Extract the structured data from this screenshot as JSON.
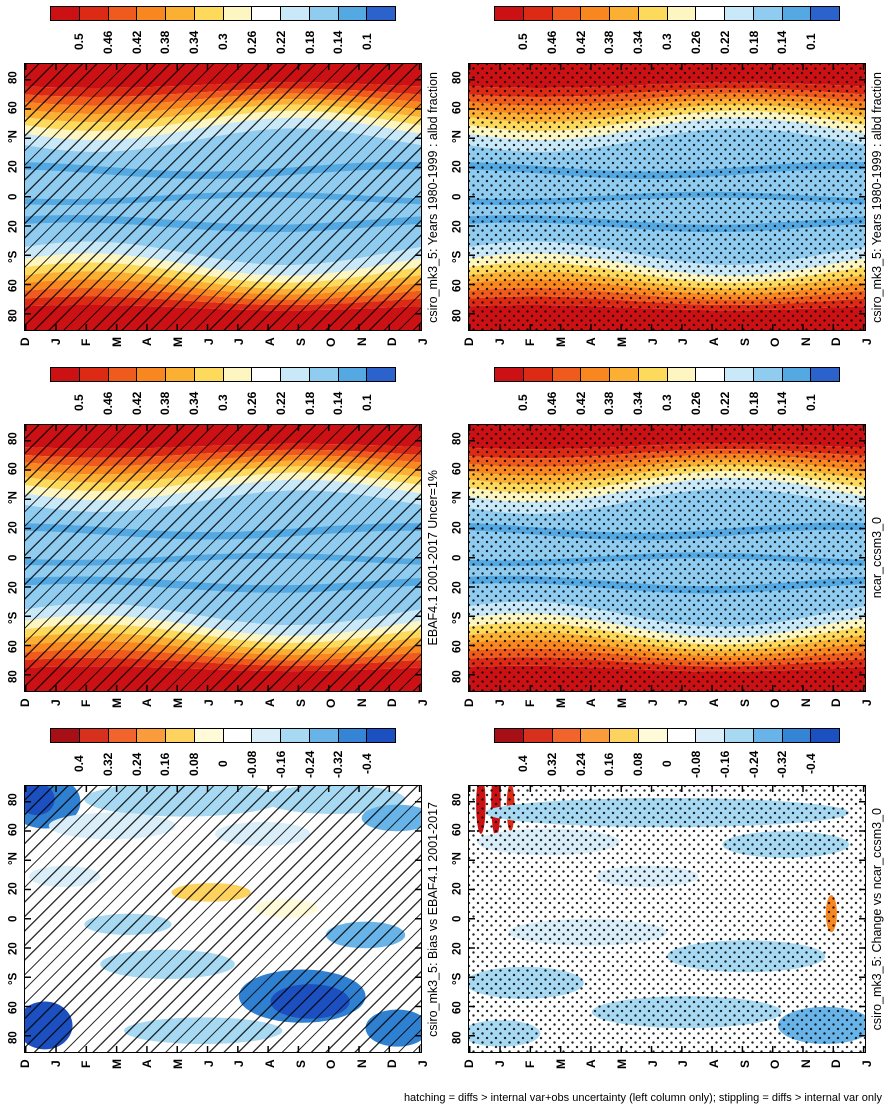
{
  "figure": {
    "caption": "hatching = diffs > internal var+obs uncertainty (left column only); stippling = diffs > internal var only",
    "background": "#ffffff",
    "layout": "2 columns x 3 rows of month-by-latitude heatmaps, page rotated 90 degrees (all labels vertical)"
  },
  "axes": {
    "month_tick_labels": [
      "D",
      "J",
      "F",
      "M",
      "A",
      "M",
      "J",
      "J",
      "A",
      "S",
      "O",
      "N",
      "D",
      "J"
    ],
    "lat_tick_labels": [
      "80",
      "60",
      "°N",
      "20",
      "0",
      "20",
      "°S",
      "60",
      "80"
    ]
  },
  "colorbars": {
    "albedo": {
      "tick_labels": [
        "0.5",
        "0.46",
        "0.42",
        "0.38",
        "0.34",
        "0.3",
        "0.26",
        "0.22",
        "0.18",
        "0.14",
        "0.1"
      ],
      "colors": [
        "#cb1114",
        "#dd2a15",
        "#ee5b1c",
        "#f8871f",
        "#fbb034",
        "#fdd95c",
        "#fef6c0",
        "#ffffff",
        "#c9e9f9",
        "#8fccf0",
        "#54a9e2",
        "#2c62cc"
      ]
    },
    "diff": {
      "tick_labels": [
        "0.4",
        "0.32",
        "0.24",
        "0.16",
        "0.08",
        "0",
        "-0.08",
        "-0.16",
        "-0.24",
        "-0.32",
        "-0.4"
      ],
      "colors": [
        "#a50f15",
        "#d7301f",
        "#f1652c",
        "#fb9c3c",
        "#fdd25f",
        "#fffbd9",
        "#ffffff",
        "#d9eef9",
        "#a8d9f2",
        "#68b4e8",
        "#3584d6",
        "#1c4fc0"
      ]
    }
  },
  "render_shared": {
    "climo_bands": [
      [
        "#cb1114",
        0.08,
        0.01,
        0.18
      ],
      [
        "#dd2a15",
        0.108,
        0.016,
        0.18
      ],
      [
        "#ee5b1c",
        0.134,
        0.022,
        0.18
      ],
      [
        "#f8871f",
        0.16,
        0.028,
        0.18
      ],
      [
        "#fbb034",
        0.186,
        0.033,
        0.18
      ],
      [
        "#fdd95c",
        0.214,
        0.038,
        0.18
      ],
      [
        "#fef6c0",
        0.244,
        0.042,
        0.18
      ],
      [
        "#c9e9f9",
        0.286,
        0.044,
        0.18
      ],
      [
        "#8fccf0",
        0.712,
        0.044,
        0.66
      ],
      [
        "#c9e9f9",
        0.754,
        0.042,
        0.66
      ],
      [
        "#fef6c0",
        0.784,
        0.038,
        0.66
      ],
      [
        "#fdd95c",
        0.812,
        0.033,
        0.66
      ],
      [
        "#fbb034",
        0.838,
        0.028,
        0.66
      ],
      [
        "#f8871f",
        0.864,
        0.022,
        0.66
      ],
      [
        "#ee5b1c",
        0.89,
        0.016,
        0.66
      ],
      [
        "#dd2a15",
        0.916,
        0.01,
        0.66
      ],
      [
        "#cb1114",
        1.0,
        0.0,
        0.0
      ]
    ],
    "climo_streaks": [
      [
        "#54a9e2",
        0.4,
        0.018,
        0.45,
        0.028
      ],
      [
        "#54a9e2",
        0.505,
        0.014,
        0.1,
        0.022
      ],
      [
        "#54a9e2",
        0.6,
        0.018,
        0.62,
        0.028
      ]
    ]
  },
  "chart_data": [
    {
      "key": "p1",
      "column": "left",
      "row": 1,
      "type": "heatmap",
      "title": "csiro_mk3_5: Years 1980-1999 : albd fraction",
      "x_axis": "month (Dec to following Jan)",
      "y_axis": "latitude (80N top to 80S bottom)",
      "colorbar": "albedo",
      "overlay": "hatching",
      "value_range": [
        0.1,
        0.5
      ],
      "approx_zonal_mean_albedo": {
        "80N": 0.52,
        "60N": 0.42,
        "40N": 0.3,
        "20N": 0.24,
        "0": 0.22,
        "20S": 0.24,
        "40S": 0.3,
        "60S": 0.42,
        "80S": 0.52
      },
      "render": {
        "bands_ref": "climo_bands",
        "streaks_ref": "climo_streaks",
        "amp_scale": 1.0,
        "phase_shift": 0.0
      }
    },
    {
      "key": "p2",
      "column": "right",
      "row": 1,
      "type": "heatmap",
      "title": "csiro_mk3_5: Years 1980-1999 : albd fraction",
      "x_axis": "month (Dec to following Jan)",
      "y_axis": "latitude (80N top to 80S bottom)",
      "colorbar": "albedo",
      "overlay": "stippling",
      "value_range": [
        0.1,
        0.5
      ],
      "approx_zonal_mean_albedo": {
        "80N": 0.52,
        "60N": 0.42,
        "40N": 0.3,
        "20N": 0.24,
        "0": 0.22,
        "20S": 0.24,
        "40S": 0.3,
        "60S": 0.42,
        "80S": 0.52
      },
      "render": {
        "bands_ref": "climo_bands",
        "streaks_ref": "climo_streaks",
        "amp_scale": 1.0,
        "phase_shift": 0.0
      }
    },
    {
      "key": "p3",
      "column": "left",
      "row": 2,
      "type": "heatmap",
      "title": "EBAF4.1 2001-2017 Uncer=1%",
      "x_axis": "month (Dec to following Jan)",
      "y_axis": "latitude (80N top to 80S bottom)",
      "colorbar": "albedo",
      "overlay": "hatching",
      "value_range": [
        0.1,
        0.5
      ],
      "approx_zonal_mean_albedo": {
        "80N": 0.5,
        "60N": 0.4,
        "40N": 0.3,
        "20N": 0.24,
        "0": 0.23,
        "20S": 0.25,
        "40S": 0.31,
        "60S": 0.43,
        "80S": 0.52
      },
      "render": {
        "bands_ref": "climo_bands",
        "streaks_ref": "climo_streaks",
        "amp_scale": 0.92,
        "phase_shift": 0.015
      }
    },
    {
      "key": "p4",
      "column": "right",
      "row": 2,
      "type": "heatmap",
      "title": "ncar_ccsm3_0",
      "x_axis": "month (Dec to following Jan)",
      "y_axis": "latitude (80N top to 80S bottom)",
      "colorbar": "albedo",
      "overlay": "stippling",
      "value_range": [
        0.1,
        0.5
      ],
      "approx_zonal_mean_albedo": {
        "80N": 0.52,
        "60N": 0.43,
        "40N": 0.31,
        "20N": 0.24,
        "0": 0.23,
        "20S": 0.25,
        "40S": 0.31,
        "60S": 0.43,
        "80S": 0.53
      },
      "render": {
        "bands_ref": "climo_bands",
        "streaks_ref": "climo_streaks",
        "amp_scale": 1.08,
        "phase_shift": -0.02
      }
    },
    {
      "key": "p5",
      "column": "left",
      "row": 3,
      "type": "heatmap",
      "title": "csiro_mk3_5: Bias vs EBAF4.1 2001-2017",
      "x_axis": "month (Dec to following Jan)",
      "y_axis": "latitude (80N top to 80S bottom)",
      "colorbar": "diff",
      "overlay": "hatching",
      "value_range": [
        -0.4,
        0.4
      ],
      "summary": "mostly small negative bias (0 to -0.16, white/light blue); strong negative bias (below -0.3, dark blue) near 60-80N in Dec-Feb and 60-80S in austral winter/spring; small positive patches (about +0.1, pale yellow) near the equator mid-year",
      "render": {
        "bg": "#ffffff",
        "blobs": [
          [
            "#3080d2",
            0.05,
            0.06,
            0.09,
            0.1
          ],
          [
            "#1c4fc0",
            0.03,
            0.05,
            0.045,
            0.06
          ],
          [
            "#a8d9f2",
            0.4,
            0.05,
            0.25,
            0.065
          ],
          [
            "#a8d9f2",
            0.78,
            0.05,
            0.18,
            0.055
          ],
          [
            "#68b4e8",
            0.94,
            0.12,
            0.09,
            0.05
          ],
          [
            "#d9eef9",
            0.22,
            0.15,
            0.16,
            0.05
          ],
          [
            "#d9eef9",
            0.6,
            0.18,
            0.12,
            0.045
          ],
          [
            "#d9eef9",
            0.1,
            0.34,
            0.09,
            0.04
          ],
          [
            "#fdd25f",
            0.47,
            0.4,
            0.1,
            0.035
          ],
          [
            "#fffbd9",
            0.66,
            0.46,
            0.08,
            0.035
          ],
          [
            "#a8d9f2",
            0.26,
            0.52,
            0.11,
            0.04
          ],
          [
            "#68b4e8",
            0.86,
            0.56,
            0.1,
            0.05
          ],
          [
            "#a8d9f2",
            0.36,
            0.67,
            0.17,
            0.055
          ],
          [
            "#3080d2",
            0.7,
            0.79,
            0.16,
            0.1
          ],
          [
            "#1c4fc0",
            0.72,
            0.81,
            0.1,
            0.065
          ],
          [
            "#1c4fc0",
            0.05,
            0.9,
            0.07,
            0.09
          ],
          [
            "#a8d9f2",
            0.45,
            0.92,
            0.2,
            0.05
          ],
          [
            "#3080d2",
            0.94,
            0.91,
            0.08,
            0.07
          ]
        ]
      }
    },
    {
      "key": "p6",
      "column": "right",
      "row": 3,
      "type": "heatmap",
      "title": "csiro_mk3_5: Change vs ncar_ccsm3_0",
      "x_axis": "month (Dec to following Jan)",
      "y_axis": "latitude (80N top to 80S bottom)",
      "colorbar": "diff",
      "overlay": "stippling",
      "value_range": [
        -0.4,
        0.4
      ],
      "summary": "mostly near zero (white) with weak negative bands (-0.08 to -0.16, light blue); narrow strong positive streaks (above +0.3, red) at 60-80N in Dec-Feb and a small orange streak near 40S late in the year",
      "render": {
        "bg": "#ffffff",
        "blobs": [
          [
            "#cb1114",
            0.03,
            0.07,
            0.012,
            0.11
          ],
          [
            "#cb1114",
            0.068,
            0.06,
            0.012,
            0.13
          ],
          [
            "#dd2a15",
            0.105,
            0.08,
            0.01,
            0.09
          ],
          [
            "#a8d9f2",
            0.5,
            0.1,
            0.46,
            0.055
          ],
          [
            "#d9eef9",
            0.2,
            0.21,
            0.18,
            0.05
          ],
          [
            "#a8d9f2",
            0.8,
            0.22,
            0.16,
            0.05
          ],
          [
            "#d9eef9",
            0.45,
            0.34,
            0.13,
            0.04
          ],
          [
            "#f8871f",
            0.915,
            0.48,
            0.014,
            0.07
          ],
          [
            "#d9eef9",
            0.3,
            0.55,
            0.2,
            0.05
          ],
          [
            "#a8d9f2",
            0.7,
            0.64,
            0.2,
            0.06
          ],
          [
            "#a8d9f2",
            0.14,
            0.74,
            0.15,
            0.06
          ],
          [
            "#a8d9f2",
            0.55,
            0.85,
            0.24,
            0.06
          ],
          [
            "#68b4e8",
            0.9,
            0.9,
            0.12,
            0.07
          ],
          [
            "#a8d9f2",
            0.08,
            0.93,
            0.1,
            0.05
          ]
        ]
      }
    }
  ]
}
